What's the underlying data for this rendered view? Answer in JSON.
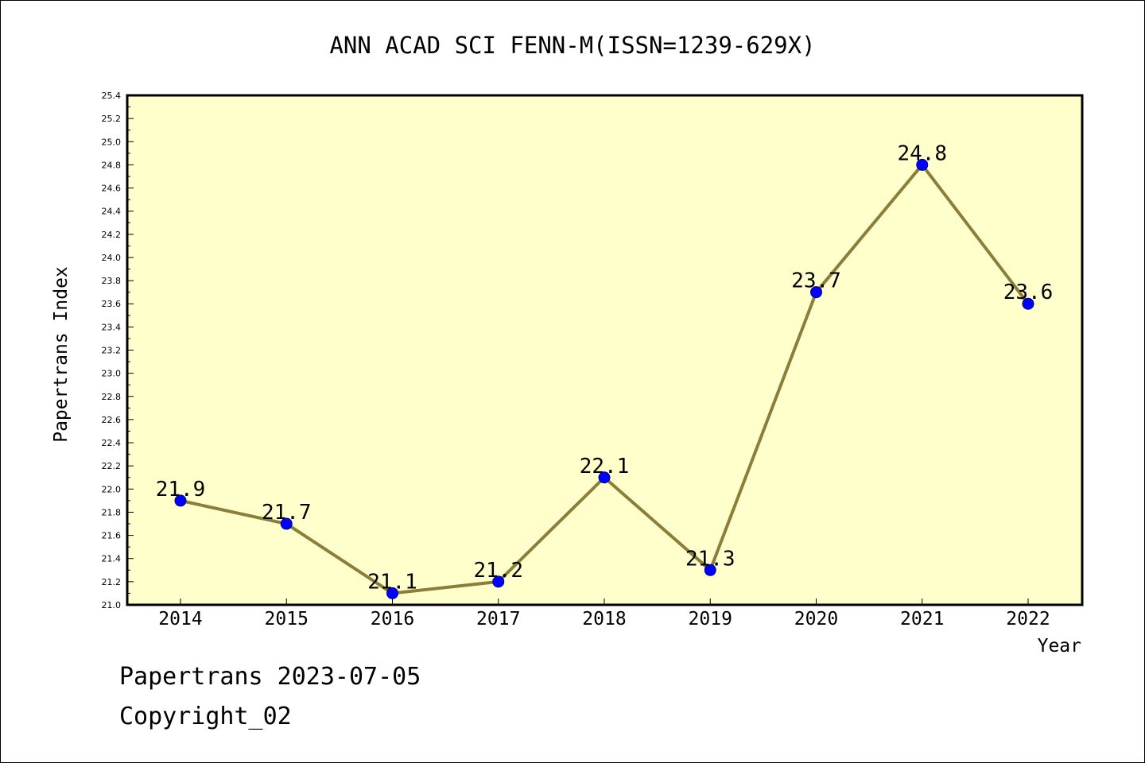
{
  "chart_data": {
    "type": "line",
    "title": "ANN ACAD SCI FENN-M(ISSN=1239-629X)",
    "xlabel": "Year",
    "ylabel": "Papertrans Index",
    "categories": [
      "2014",
      "2015",
      "2016",
      "2017",
      "2018",
      "2019",
      "2020",
      "2021",
      "2022"
    ],
    "series": [
      {
        "values": [
          21.9,
          21.7,
          21.1,
          21.2,
          22.1,
          21.3,
          23.7,
          24.8,
          23.6
        ]
      }
    ],
    "data_labels": [
      "21.9",
      "21.7",
      "21.1",
      "21.2",
      "22.1",
      "21.3",
      "23.7",
      "24.8",
      "23.6"
    ],
    "ylim": [
      21.0,
      25.4
    ],
    "ytick_step": 0.2,
    "yticks": [
      "21.0",
      "21.2",
      "21.4",
      "21.6",
      "21.8",
      "22.0",
      "22.2",
      "22.4",
      "22.6",
      "22.8",
      "23.0",
      "23.2",
      "23.4",
      "23.6",
      "23.8",
      "24.0",
      "24.2",
      "24.4",
      "24.6",
      "24.8",
      "25.0",
      "25.2",
      "25.4"
    ],
    "grid": false,
    "colors": {
      "plot_background": "#ffffcc",
      "line": "#8b7d3a",
      "marker": "#0000ff"
    }
  },
  "footer": {
    "line1": "Papertrans 2023-07-05",
    "line2": "Copyright_02"
  }
}
